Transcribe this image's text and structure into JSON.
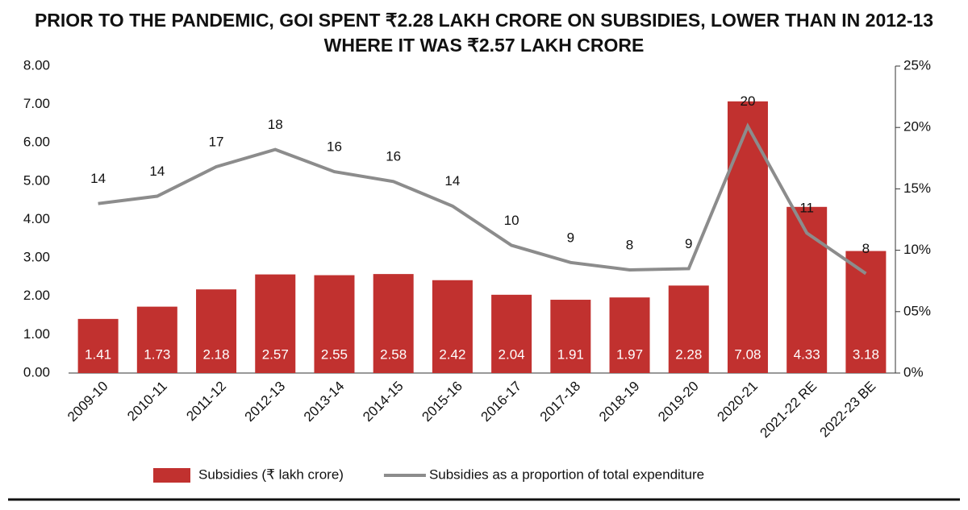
{
  "chart_data": {
    "type": "bar",
    "title": "PRIOR TO THE PANDEMIC, GOI SPENT ₹2.28 LAKH CRORE ON SUBSIDIES, LOWER THAN IN 2012-13 WHERE IT WAS ₹2.57 LAKH CRORE",
    "categories": [
      "2009-10",
      "2010-11",
      "2011-12",
      "2012-13",
      "2013-14",
      "2014-15",
      "2015-16",
      "2016-17",
      "2017-18",
      "2018-19",
      "2019-20",
      "2020-21",
      "2021-22 RE",
      "2022-23 BE"
    ],
    "series": [
      {
        "name": "Subsidies (₹ lakh crore)",
        "type": "bar",
        "color": "#c1312f",
        "values": [
          1.41,
          1.73,
          2.18,
          2.57,
          2.55,
          2.58,
          2.42,
          2.04,
          1.91,
          1.97,
          2.28,
          7.08,
          4.33,
          3.18
        ]
      },
      {
        "name": "Subsidies as a proportion of total expenditure",
        "type": "line",
        "axis": "y2",
        "color": "#8c8c8c",
        "values": [
          13.8,
          14.4,
          16.8,
          18.2,
          16.4,
          15.6,
          13.6,
          10.4,
          9.0,
          8.4,
          8.5,
          20.1,
          11.4,
          8.1
        ],
        "value_labels": [
          "14",
          "14",
          "17",
          "18",
          "16",
          "16",
          "14",
          "10",
          "9",
          "8",
          "9",
          "20",
          "11",
          "8"
        ]
      }
    ],
    "ylim": [
      0,
      8
    ],
    "yticks": [
      {
        "value": 0,
        "label": "0.00"
      },
      {
        "value": 1,
        "label": "1.00"
      },
      {
        "value": 2,
        "label": "2.00"
      },
      {
        "value": 3,
        "label": "3.00"
      },
      {
        "value": 4,
        "label": "4.00"
      },
      {
        "value": 5,
        "label": "5.00"
      },
      {
        "value": 6,
        "label": "6.00"
      },
      {
        "value": 7,
        "label": "7.00"
      },
      {
        "value": 8,
        "label": "8.00"
      }
    ],
    "y2lim": [
      0,
      25
    ],
    "y2ticks": [
      {
        "value": 0,
        "label": "0%"
      },
      {
        "value": 5,
        "label": "05%"
      },
      {
        "value": 10,
        "label": "10%"
      },
      {
        "value": 15,
        "label": "15%"
      },
      {
        "value": 20,
        "label": "20%"
      },
      {
        "value": 25,
        "label": "25%"
      }
    ],
    "grid": false
  }
}
